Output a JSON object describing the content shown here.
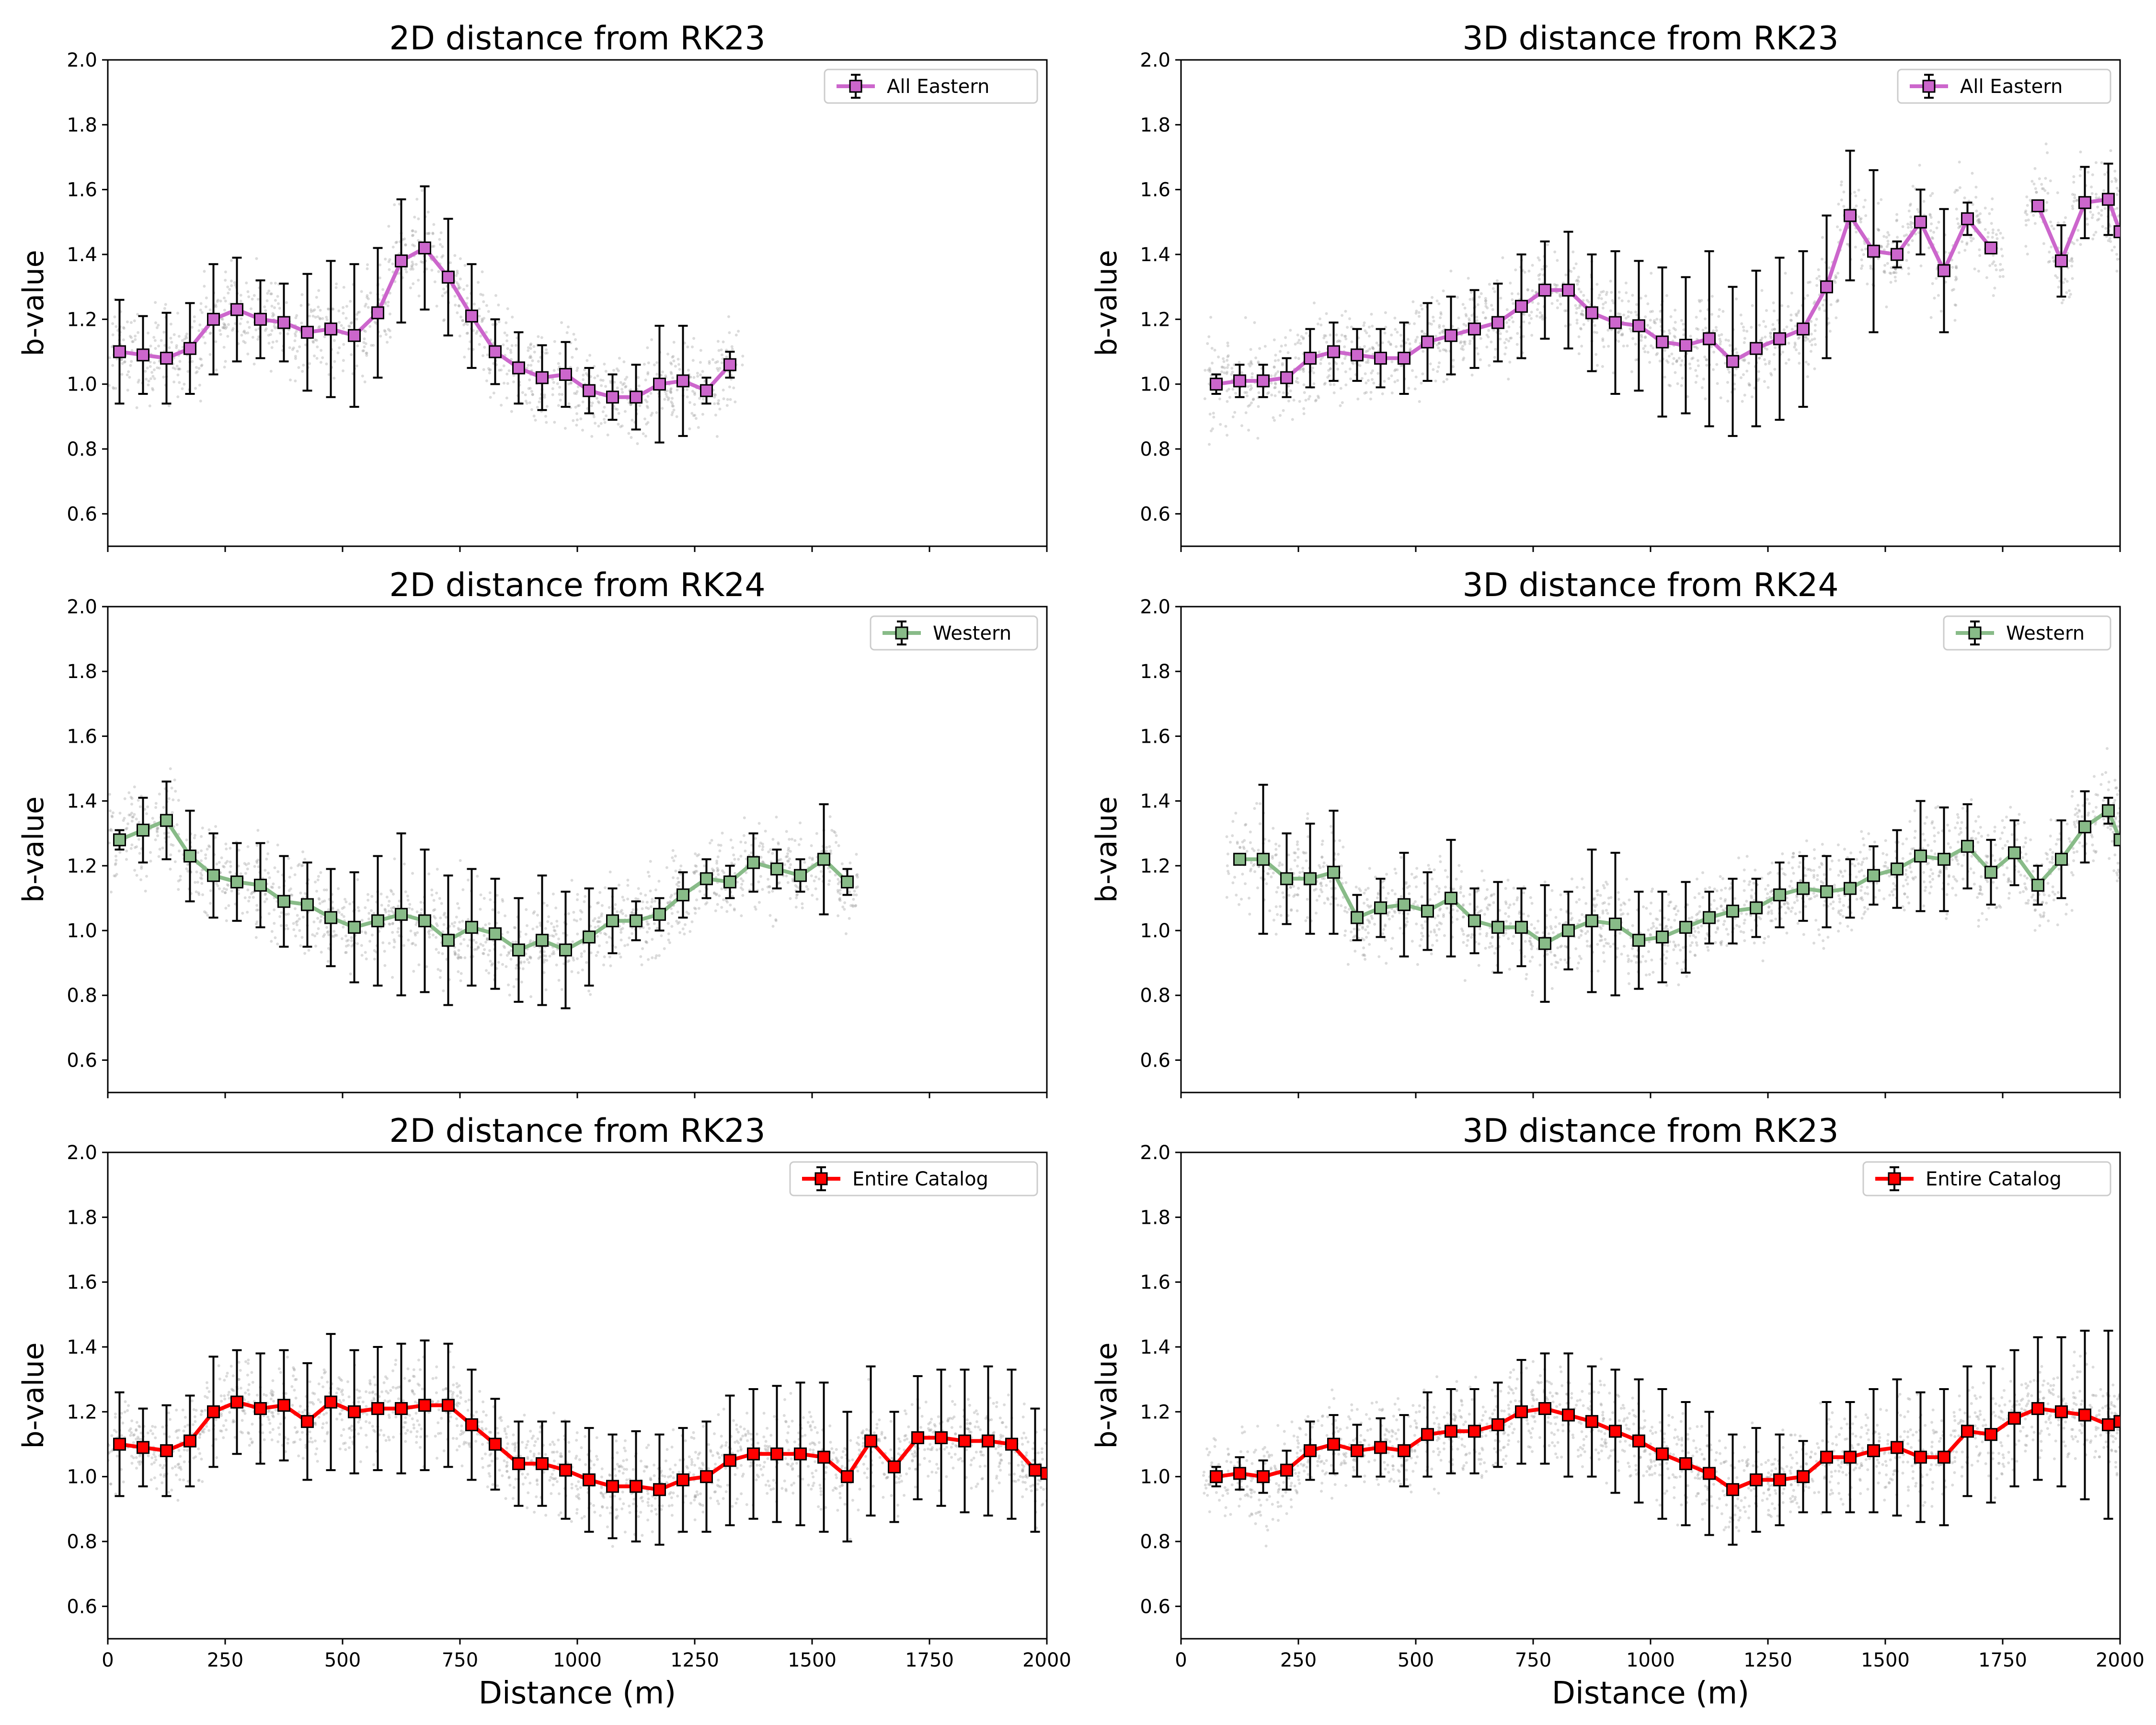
{
  "figure": {
    "y_label": "b-value",
    "x_label": "Distance (m)"
  },
  "chart_data": [
    {
      "type": "line",
      "title": "2D distance from RK23",
      "xlim": [
        0,
        2000
      ],
      "ylim": [
        0.5,
        2.0
      ],
      "y_ticks": [
        "0.6",
        "0.8",
        "1.0",
        "1.2",
        "1.4",
        "1.6",
        "1.8",
        "2.0"
      ],
      "x_ticks": [],
      "legend": "top-right",
      "background": "gray scatter points",
      "series": [
        {
          "name": "All Eastern",
          "color": "#cc66cc",
          "x": [
            25,
            75,
            125,
            175,
            225,
            275,
            325,
            375,
            425,
            475,
            525,
            575,
            625,
            675,
            725,
            775,
            825,
            875,
            925,
            975,
            1025,
            1075,
            1125,
            1175,
            1225,
            1275,
            1325
          ],
          "y": [
            1.1,
            1.09,
            1.08,
            1.11,
            1.2,
            1.23,
            1.2,
            1.19,
            1.16,
            1.17,
            1.15,
            1.22,
            1.38,
            1.42,
            1.33,
            1.21,
            1.1,
            1.05,
            1.02,
            1.03,
            0.98,
            0.96,
            0.96,
            1.0,
            1.01,
            0.98,
            1.06
          ],
          "err": [
            0.16,
            0.12,
            0.14,
            0.14,
            0.17,
            0.16,
            0.12,
            0.12,
            0.18,
            0.21,
            0.22,
            0.2,
            0.19,
            0.19,
            0.18,
            0.16,
            0.1,
            0.11,
            0.1,
            0.1,
            0.07,
            0.07,
            0.1,
            0.18,
            0.17,
            0.04,
            0.04
          ]
        }
      ]
    },
    {
      "type": "line",
      "title": "3D distance from RK23",
      "xlim": [
        0,
        2000
      ],
      "ylim": [
        0.5,
        2.0
      ],
      "y_ticks": [
        "0.6",
        "0.8",
        "1.0",
        "1.2",
        "1.4",
        "1.6",
        "1.8",
        "2.0"
      ],
      "x_ticks": [],
      "legend": "top-right",
      "background": "gray scatter points",
      "series": [
        {
          "name": "All Eastern",
          "color": "#cc66cc",
          "x": [
            75,
            125,
            175,
            225,
            275,
            325,
            375,
            425,
            475,
            525,
            575,
            625,
            675,
            725,
            775,
            825,
            875,
            925,
            975,
            1025,
            1075,
            1125,
            1175,
            1225,
            1275,
            1325,
            1375,
            1425,
            1475,
            1525,
            1575,
            1625,
            1675,
            1725,
            1825,
            1875,
            1925,
            1975,
            2000
          ],
          "y": [
            1.0,
            1.01,
            1.01,
            1.02,
            1.08,
            1.1,
            1.09,
            1.08,
            1.08,
            1.13,
            1.15,
            1.17,
            1.19,
            1.24,
            1.29,
            1.29,
            1.22,
            1.19,
            1.18,
            1.13,
            1.12,
            1.14,
            1.07,
            1.11,
            1.14,
            1.17,
            1.3,
            1.52,
            1.41,
            1.4,
            1.5,
            1.35,
            1.51,
            1.42,
            1.55,
            1.38,
            1.56,
            1.57,
            1.47
          ],
          "err": [
            0.03,
            0.05,
            0.05,
            0.06,
            0.09,
            0.09,
            0.08,
            0.09,
            0.11,
            0.12,
            0.12,
            0.12,
            0.12,
            0.16,
            0.15,
            0.18,
            0.18,
            0.22,
            0.2,
            0.23,
            0.21,
            0.27,
            0.23,
            0.24,
            0.25,
            0.24,
            0.22,
            0.2,
            0.25,
            0.04,
            0.1,
            0.19,
            0.05,
            null,
            null,
            0.11,
            0.11,
            0.11,
            null
          ],
          "gap_before_index": 34
        }
      ]
    },
    {
      "type": "line",
      "title": "2D distance from RK24",
      "xlim": [
        0,
        2000
      ],
      "ylim": [
        0.5,
        2.0
      ],
      "y_ticks": [
        "0.6",
        "0.8",
        "1.0",
        "1.2",
        "1.4",
        "1.6",
        "1.8",
        "2.0"
      ],
      "x_ticks": [],
      "legend": "top-right",
      "background": "gray scatter points",
      "series": [
        {
          "name": "Western",
          "color": "#88bb88",
          "x": [
            25,
            75,
            125,
            175,
            225,
            275,
            325,
            375,
            425,
            475,
            525,
            575,
            625,
            675,
            725,
            775,
            825,
            875,
            925,
            975,
            1025,
            1075,
            1125,
            1175,
            1225,
            1275,
            1325,
            1375,
            1425,
            1475,
            1525,
            1575
          ],
          "y": [
            1.28,
            1.31,
            1.34,
            1.23,
            1.17,
            1.15,
            1.14,
            1.09,
            1.08,
            1.04,
            1.01,
            1.03,
            1.05,
            1.03,
            0.97,
            1.01,
            0.99,
            0.94,
            0.97,
            0.94,
            0.98,
            1.03,
            1.03,
            1.05,
            1.11,
            1.16,
            1.15,
            1.21,
            1.19,
            1.17,
            1.22,
            1.15
          ],
          "err": [
            0.03,
            0.1,
            0.12,
            0.14,
            0.13,
            0.12,
            0.13,
            0.14,
            0.13,
            0.15,
            0.17,
            0.2,
            0.25,
            0.22,
            0.2,
            0.18,
            0.17,
            0.16,
            0.2,
            0.18,
            0.15,
            0.1,
            0.06,
            0.05,
            0.07,
            0.06,
            0.05,
            0.09,
            0.06,
            0.05,
            0.17,
            0.04
          ]
        }
      ]
    },
    {
      "type": "line",
      "title": "3D distance from RK24",
      "xlim": [
        0,
        2000
      ],
      "ylim": [
        0.5,
        2.0
      ],
      "y_ticks": [
        "0.6",
        "0.8",
        "1.0",
        "1.2",
        "1.4",
        "1.6",
        "1.8",
        "2.0"
      ],
      "x_ticks": [],
      "legend": "top-right",
      "background": "gray scatter points",
      "series": [
        {
          "name": "Western",
          "color": "#88bb88",
          "x": [
            125,
            175,
            225,
            275,
            325,
            375,
            425,
            475,
            525,
            575,
            625,
            675,
            725,
            775,
            825,
            875,
            925,
            975,
            1025,
            1075,
            1125,
            1175,
            1225,
            1275,
            1325,
            1375,
            1425,
            1475,
            1525,
            1575,
            1625,
            1675,
            1725,
            1775,
            1825,
            1875,
            1925,
            1975,
            2000
          ],
          "y": [
            1.22,
            1.22,
            1.16,
            1.16,
            1.18,
            1.04,
            1.07,
            1.08,
            1.06,
            1.1,
            1.03,
            1.01,
            1.01,
            0.96,
            1.0,
            1.03,
            1.02,
            0.97,
            0.98,
            1.01,
            1.04,
            1.06,
            1.07,
            1.11,
            1.13,
            1.12,
            1.13,
            1.17,
            1.19,
            1.23,
            1.22,
            1.26,
            1.18,
            1.24,
            1.14,
            1.22,
            1.32,
            1.37,
            1.28
          ],
          "err": [
            null,
            0.23,
            0.14,
            0.17,
            0.19,
            0.07,
            0.09,
            0.16,
            0.12,
            0.18,
            0.1,
            0.14,
            0.12,
            0.18,
            0.12,
            0.22,
            0.22,
            0.15,
            0.14,
            0.14,
            0.08,
            0.1,
            0.09,
            0.1,
            0.1,
            0.11,
            0.09,
            0.09,
            0.12,
            0.17,
            0.16,
            0.13,
            0.1,
            0.1,
            0.06,
            0.12,
            0.11,
            0.04,
            null
          ]
        }
      ]
    },
    {
      "type": "line",
      "title": "2D distance from RK23",
      "xlim": [
        0,
        2000
      ],
      "ylim": [
        0.5,
        2.0
      ],
      "y_ticks": [
        "0.6",
        "0.8",
        "1.0",
        "1.2",
        "1.4",
        "1.6",
        "1.8",
        "2.0"
      ],
      "x_ticks": [
        "0",
        "250",
        "500",
        "750",
        "1000",
        "1250",
        "1500",
        "1750",
        "2000"
      ],
      "legend": "top-right",
      "background": "gray scatter points",
      "series": [
        {
          "name": "Entire Catalog",
          "color": "#ff0000",
          "x": [
            25,
            75,
            125,
            175,
            225,
            275,
            325,
            375,
            425,
            475,
            525,
            575,
            625,
            675,
            725,
            775,
            825,
            875,
            925,
            975,
            1025,
            1075,
            1125,
            1175,
            1225,
            1275,
            1325,
            1375,
            1425,
            1475,
            1525,
            1575,
            1625,
            1675,
            1725,
            1775,
            1825,
            1875,
            1925,
            1975,
            2000
          ],
          "y": [
            1.1,
            1.09,
            1.08,
            1.11,
            1.2,
            1.23,
            1.21,
            1.22,
            1.17,
            1.23,
            1.2,
            1.21,
            1.21,
            1.22,
            1.22,
            1.16,
            1.1,
            1.04,
            1.04,
            1.02,
            0.99,
            0.97,
            0.97,
            0.96,
            0.99,
            1.0,
            1.05,
            1.07,
            1.07,
            1.07,
            1.06,
            1.0,
            1.11,
            1.03,
            1.12,
            1.12,
            1.11,
            1.11,
            1.1,
            1.02,
            1.01
          ],
          "err": [
            0.16,
            0.12,
            0.14,
            0.14,
            0.17,
            0.16,
            0.17,
            0.17,
            0.18,
            0.21,
            0.19,
            0.19,
            0.2,
            0.2,
            0.19,
            0.17,
            0.14,
            0.13,
            0.13,
            0.15,
            0.16,
            0.16,
            0.17,
            0.17,
            0.16,
            0.17,
            0.2,
            0.2,
            0.21,
            0.22,
            0.23,
            0.2,
            0.23,
            0.17,
            0.19,
            0.21,
            0.22,
            0.23,
            0.23,
            0.19,
            null
          ]
        }
      ]
    },
    {
      "type": "line",
      "title": "3D distance from RK23",
      "xlim": [
        0,
        2000
      ],
      "ylim": [
        0.5,
        2.0
      ],
      "y_ticks": [
        "0.6",
        "0.8",
        "1.0",
        "1.2",
        "1.4",
        "1.6",
        "1.8",
        "2.0"
      ],
      "x_ticks": [
        "0",
        "250",
        "500",
        "750",
        "1000",
        "1250",
        "1500",
        "1750",
        "2000"
      ],
      "legend": "top-right",
      "background": "gray scatter points",
      "series": [
        {
          "name": "Entire Catalog",
          "color": "#ff0000",
          "x": [
            75,
            125,
            175,
            225,
            275,
            325,
            375,
            425,
            475,
            525,
            575,
            625,
            675,
            725,
            775,
            825,
            875,
            925,
            975,
            1025,
            1075,
            1125,
            1175,
            1225,
            1275,
            1325,
            1375,
            1425,
            1475,
            1525,
            1575,
            1625,
            1675,
            1725,
            1775,
            1825,
            1875,
            1925,
            1975,
            2000
          ],
          "y": [
            1.0,
            1.01,
            1.0,
            1.02,
            1.08,
            1.1,
            1.08,
            1.09,
            1.08,
            1.13,
            1.14,
            1.14,
            1.16,
            1.2,
            1.21,
            1.19,
            1.17,
            1.14,
            1.11,
            1.07,
            1.04,
            1.01,
            0.96,
            0.99,
            0.99,
            1.0,
            1.06,
            1.06,
            1.08,
            1.09,
            1.06,
            1.06,
            1.14,
            1.13,
            1.18,
            1.21,
            1.2,
            1.19,
            1.16,
            1.17
          ],
          "err": [
            0.03,
            0.05,
            0.05,
            0.06,
            0.09,
            0.09,
            0.08,
            0.09,
            0.11,
            0.13,
            0.13,
            0.13,
            0.13,
            0.16,
            0.17,
            0.19,
            0.17,
            0.19,
            0.19,
            0.2,
            0.19,
            0.19,
            0.17,
            0.16,
            0.14,
            0.11,
            0.17,
            0.17,
            0.19,
            0.21,
            0.2,
            0.21,
            0.2,
            0.21,
            0.21,
            0.22,
            0.23,
            0.26,
            0.29,
            null
          ]
        }
      ]
    }
  ]
}
